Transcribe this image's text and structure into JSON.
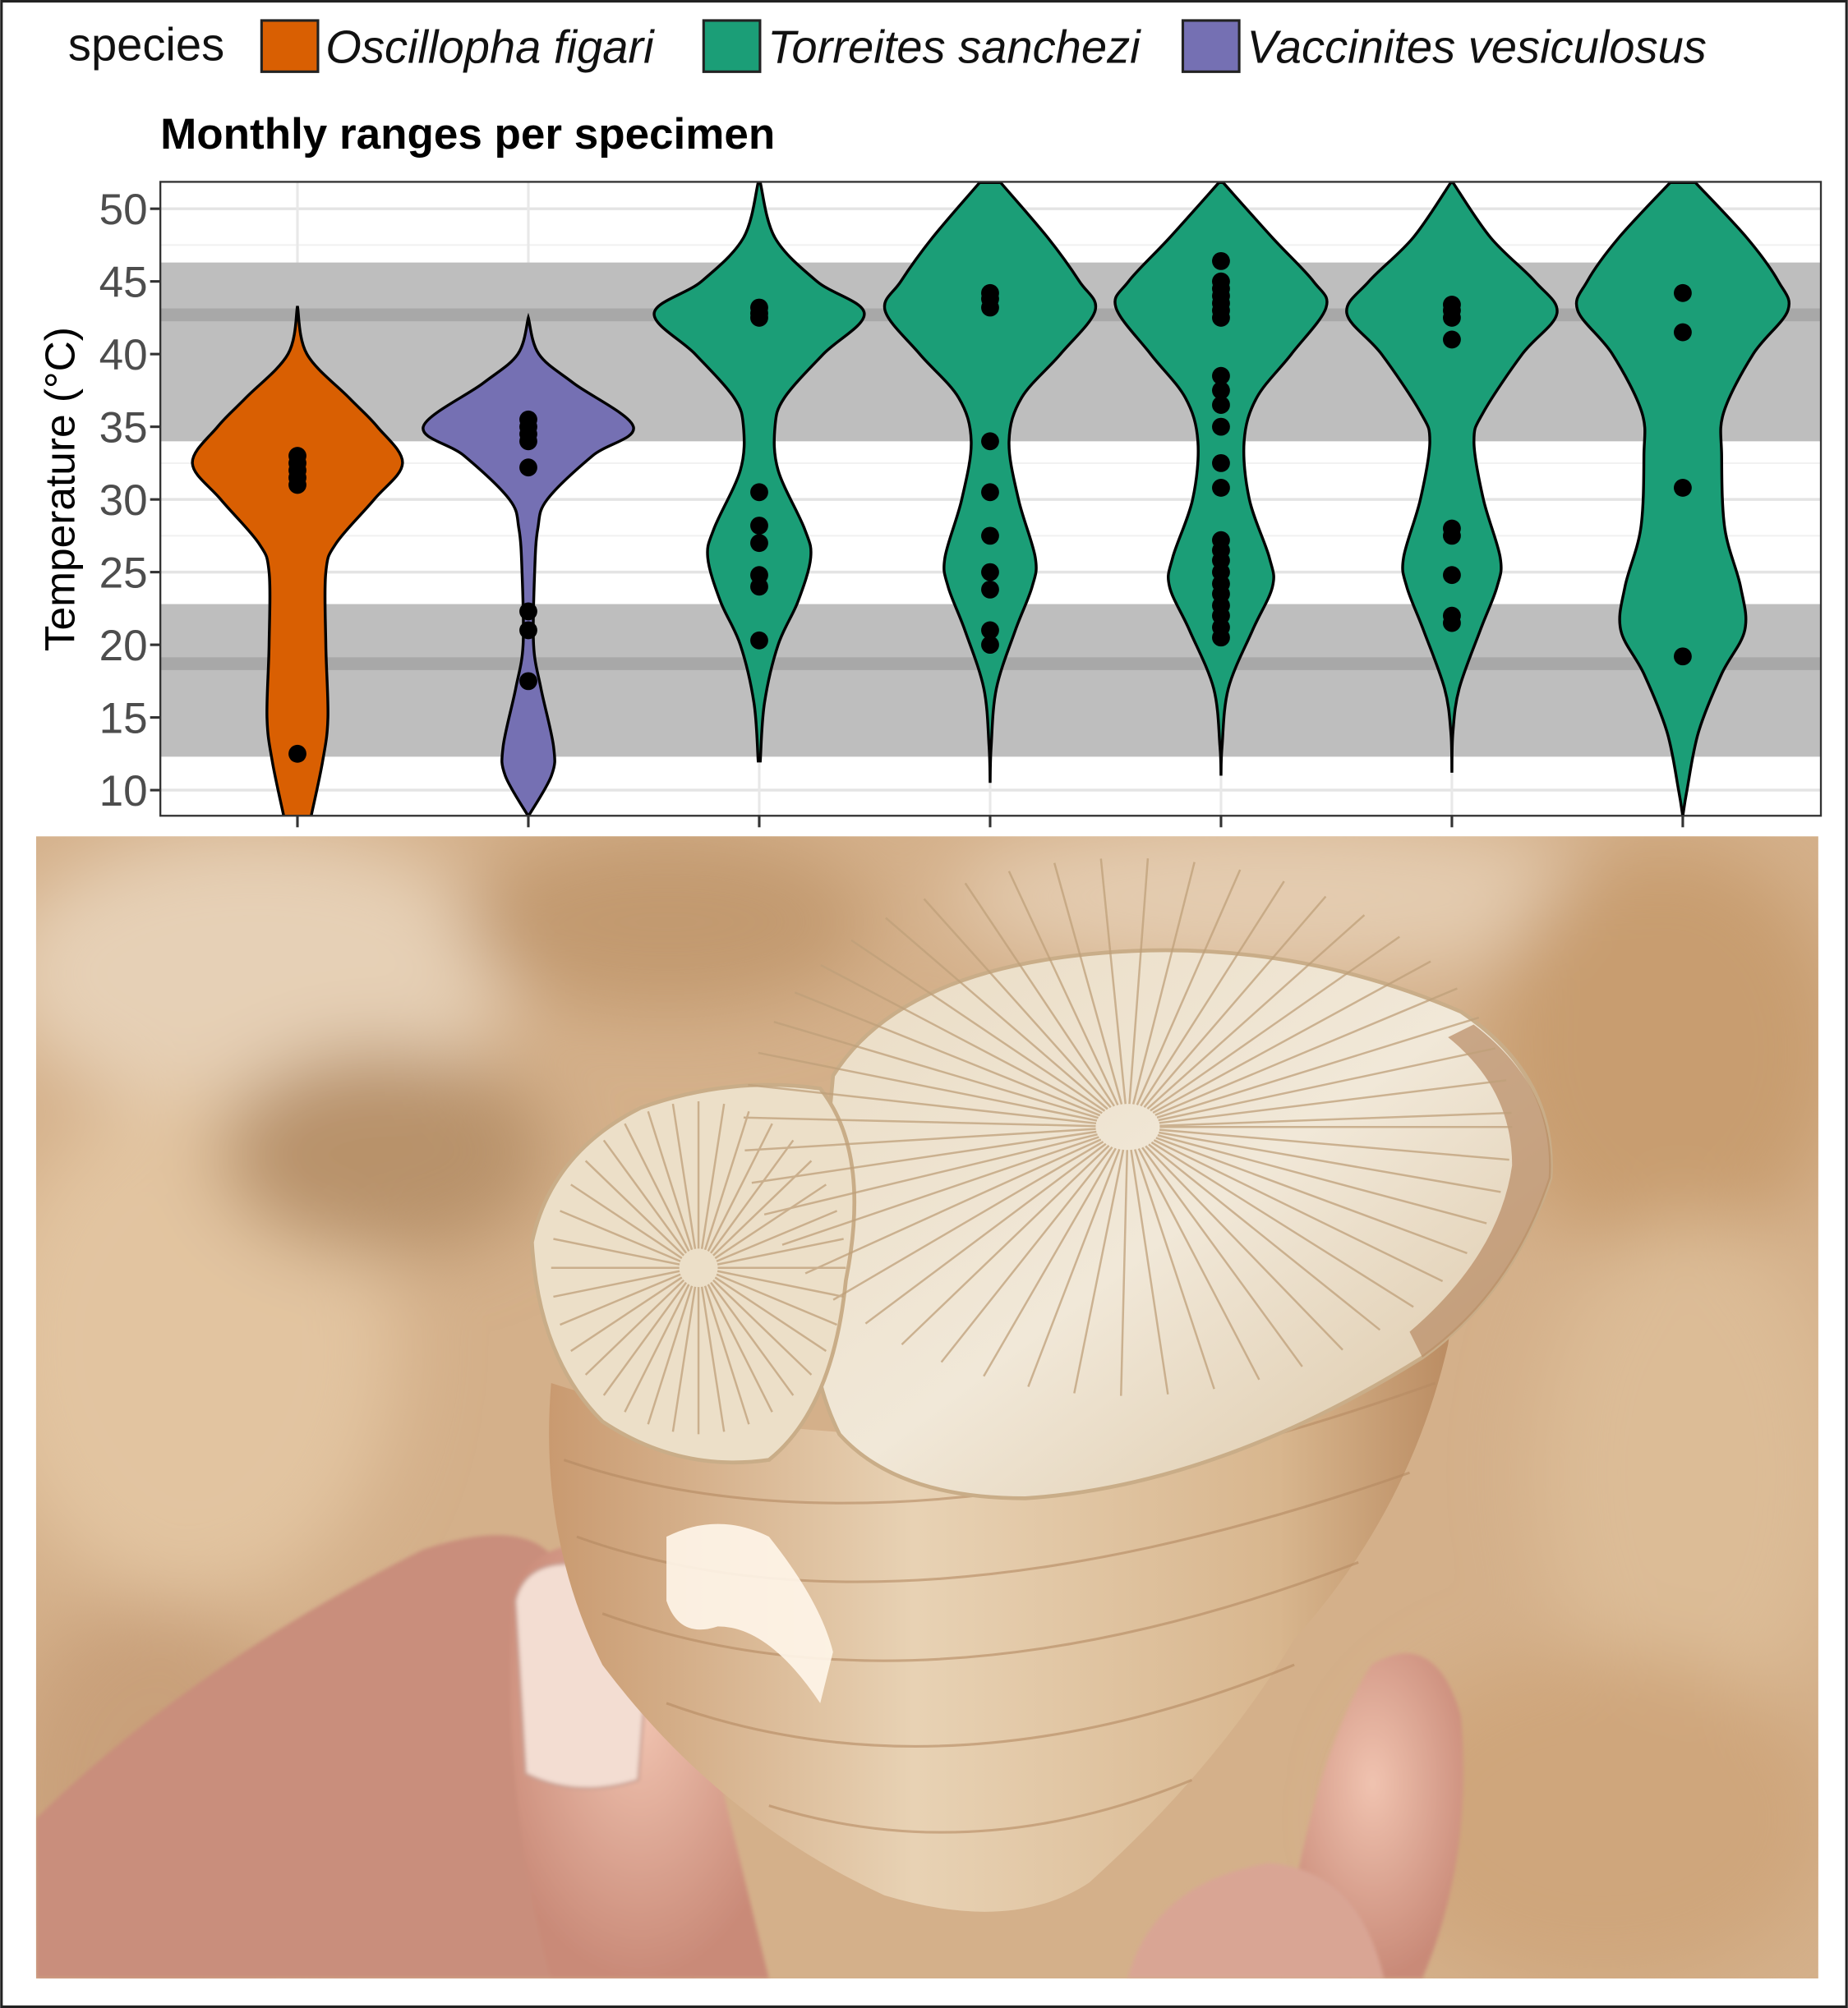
{
  "legend": {
    "title": "species",
    "entries": [
      {
        "label": "Oscillopha figari",
        "color": "#d95f02"
      },
      {
        "label": "Torreites sanchezi",
        "color": "#1b9e77"
      },
      {
        "label": "Vaccinites vesiculosus",
        "color": "#7570b3"
      }
    ]
  },
  "chart_data": {
    "type": "violin",
    "title": "Monthly ranges per specimen",
    "ylabel": "Temperature (°C)",
    "xlabel": "",
    "ylim": [
      8.2,
      51.8
    ],
    "yticks": [
      "10",
      "15",
      "20",
      "25",
      "30",
      "35",
      "40",
      "45",
      "50"
    ],
    "grid": true,
    "legend_position": "top",
    "bands": [
      {
        "from": 34.0,
        "to": 46.3,
        "line": 42.7,
        "color": "#bebebe",
        "line_color": "#a8a8a8"
      },
      {
        "from": 12.3,
        "to": 22.8,
        "line": 18.7,
        "color": "#bebebe",
        "line_color": "#a8a8a8"
      }
    ],
    "specimens": [
      {
        "species": "Oscillopha figari",
        "color": "#d95f02",
        "points": [
          33,
          32.5,
          32,
          31.5,
          31,
          12.5
        ],
        "density": [
          [
            43.3,
            0
          ],
          [
            40,
            0.09
          ],
          [
            37,
            0.49
          ],
          [
            35,
            0.76
          ],
          [
            32.5,
            1
          ],
          [
            30,
            0.73
          ],
          [
            27,
            0.37
          ],
          [
            25,
            0.27
          ],
          [
            20,
            0.27
          ],
          [
            15,
            0.29
          ],
          [
            12,
            0.24
          ],
          [
            8.2,
            0.13
          ]
        ]
      },
      {
        "species": "Vaccinites vesiculosus",
        "color": "#7570b3",
        "points": [
          35.5,
          35,
          34.5,
          34,
          32.2,
          22.3,
          21,
          17.5
        ],
        "density": [
          [
            42.5,
            0
          ],
          [
            40,
            0.1
          ],
          [
            38,
            0.43
          ],
          [
            35,
            1
          ],
          [
            33,
            0.61
          ],
          [
            30,
            0.18
          ],
          [
            28,
            0.09
          ],
          [
            25,
            0.06
          ],
          [
            20,
            0.05
          ],
          [
            17,
            0.12
          ],
          [
            13,
            0.24
          ],
          [
            11,
            0.22
          ],
          [
            8.2,
            0
          ]
        ]
      },
      {
        "species": "Torreites sanchezi",
        "color": "#1b9e77",
        "points": [
          43.2,
          42.8,
          42.5,
          30.5,
          28.2,
          27,
          24.8,
          24,
          20.3
        ],
        "density": [
          [
            51.8,
            0.01
          ],
          [
            48,
            0.15
          ],
          [
            45,
            0.55
          ],
          [
            42.8,
            1
          ],
          [
            40,
            0.61
          ],
          [
            37,
            0.24
          ],
          [
            35,
            0.15
          ],
          [
            32,
            0.18
          ],
          [
            28,
            0.43
          ],
          [
            26,
            0.49
          ],
          [
            23,
            0.37
          ],
          [
            20,
            0.18
          ],
          [
            16,
            0.05
          ],
          [
            12,
            0.01
          ]
        ]
      },
      {
        "species": "Torreites sanchezi",
        "color": "#1b9e77",
        "points": [
          44.2,
          43.8,
          43.2,
          34,
          30.5,
          27.5,
          25,
          23.8,
          21,
          20
        ],
        "density": [
          [
            51.8,
            0.1
          ],
          [
            48,
            0.55
          ],
          [
            45,
            0.85
          ],
          [
            43,
            1
          ],
          [
            40,
            0.67
          ],
          [
            37,
            0.3
          ],
          [
            34,
            0.18
          ],
          [
            30,
            0.27
          ],
          [
            26,
            0.43
          ],
          [
            24,
            0.4
          ],
          [
            21,
            0.24
          ],
          [
            17,
            0.06
          ],
          [
            13,
            0.01
          ],
          [
            10.5,
            0
          ]
        ]
      },
      {
        "species": "Torreites sanchezi",
        "color": "#1b9e77",
        "points": [
          46.4,
          45,
          44.5,
          44,
          43.5,
          43,
          42.5,
          38.5,
          37.5,
          36.5,
          35,
          32.5,
          30.8,
          27.2,
          26.5,
          25.8,
          25,
          24.2,
          23.5,
          22.7,
          22,
          21.2,
          20.5
        ],
        "density": [
          [
            51.8,
            0.02
          ],
          [
            48,
            0.49
          ],
          [
            45,
            0.88
          ],
          [
            43.2,
            1
          ],
          [
            40,
            0.67
          ],
          [
            37,
            0.34
          ],
          [
            34,
            0.22
          ],
          [
            30,
            0.27
          ],
          [
            26,
            0.46
          ],
          [
            24,
            0.49
          ],
          [
            21,
            0.3
          ],
          [
            17,
            0.07
          ],
          [
            13,
            0.01
          ],
          [
            11,
            0
          ]
        ]
      },
      {
        "species": "Torreites sanchezi",
        "color": "#1b9e77",
        "points": [
          43.4,
          43,
          42.5,
          41,
          28,
          27.5,
          24.8,
          22,
          21.5
        ],
        "density": [
          [
            51.8,
            0.01
          ],
          [
            48,
            0.37
          ],
          [
            45,
            0.79
          ],
          [
            42.8,
            1
          ],
          [
            40,
            0.67
          ],
          [
            36,
            0.3
          ],
          [
            34,
            0.21
          ],
          [
            30,
            0.3
          ],
          [
            26,
            0.46
          ],
          [
            24,
            0.43
          ],
          [
            21,
            0.27
          ],
          [
            17,
            0.07
          ],
          [
            14,
            0.01
          ],
          [
            11.2,
            0
          ]
        ]
      },
      {
        "species": "Torreites sanchezi",
        "color": "#1b9e77",
        "points": [
          44.2,
          41.5,
          30.8,
          19.2
        ],
        "density": [
          [
            51.8,
            0.12
          ],
          [
            48,
            0.61
          ],
          [
            45,
            0.91
          ],
          [
            43,
            1
          ],
          [
            40,
            0.67
          ],
          [
            36,
            0.39
          ],
          [
            33,
            0.37
          ],
          [
            28,
            0.4
          ],
          [
            24,
            0.55
          ],
          [
            21,
            0.59
          ],
          [
            18,
            0.37
          ],
          [
            14,
            0.15
          ],
          [
            10,
            0.04
          ],
          [
            8.2,
            0
          ]
        ]
      }
    ]
  },
  "photo": {
    "subject": "fossil-rudist-shell-in-hand"
  }
}
